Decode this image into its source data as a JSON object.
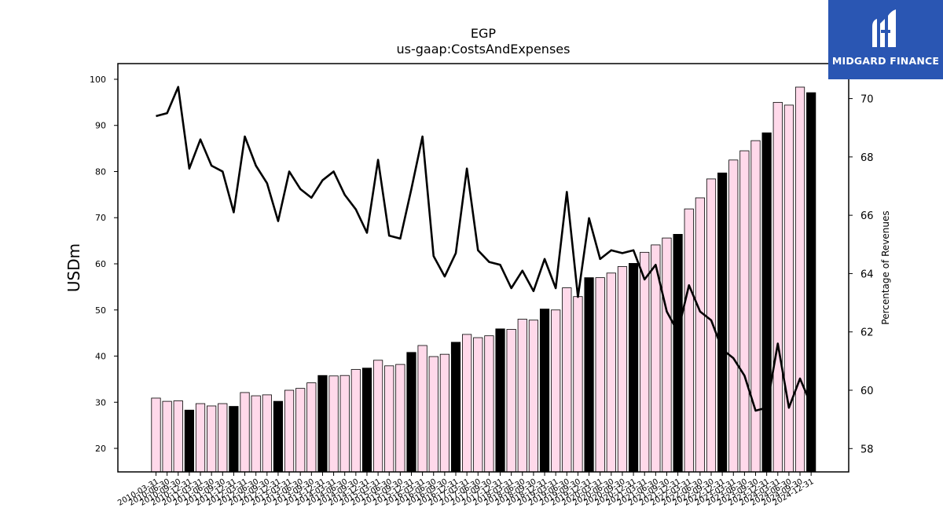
{
  "chart_data": {
    "type": "bar",
    "title": "EGP",
    "subtitle": "us-gaap:CostsAndExpenses",
    "ylabel": "USDm",
    "ylabel_right": "Percentage of Revenues",
    "ylim": [
      14.9,
      103.4
    ],
    "ylim_right": [
      57.2,
      71.2
    ],
    "yticks": [
      20,
      30,
      40,
      50,
      60,
      70,
      80,
      90,
      100
    ],
    "yticks_right": [
      58,
      60,
      62,
      64,
      66,
      68,
      70
    ],
    "categories": [
      "2010-03-31",
      "2010-06-30",
      "2010-09-30",
      "2010-12-31",
      "2011-03-31",
      "2011-06-30",
      "2011-09-30",
      "2011-12-31",
      "2012-03-31",
      "2012-06-30",
      "2012-09-30",
      "2012-12-31",
      "2013-03-31",
      "2013-06-30",
      "2013-09-30",
      "2013-12-31",
      "2014-03-31",
      "2014-06-30",
      "2014-09-30",
      "2014-12-31",
      "2015-03-31",
      "2015-06-30",
      "2015-09-30",
      "2015-12-31",
      "2016-03-31",
      "2016-06-30",
      "2016-09-30",
      "2016-12-31",
      "2017-03-31",
      "2017-06-30",
      "2017-09-30",
      "2017-12-31",
      "2018-03-31",
      "2018-06-30",
      "2018-09-30",
      "2018-12-31",
      "2019-03-31",
      "2019-06-30",
      "2019-09-30",
      "2019-12-31",
      "2020-03-31",
      "2020-06-30",
      "2020-09-30",
      "2020-12-31",
      "2021-03-31",
      "2021-06-30",
      "2021-09-30",
      "2021-12-31",
      "2022-03-31",
      "2022-06-30",
      "2022-09-30",
      "2022-12-31",
      "2023-03-31",
      "2023-06-30",
      "2023-09-30",
      "2023-12-31",
      "2024-03-31",
      "2024-06-30",
      "2024-09-30",
      "2024-12-31"
    ],
    "series": [
      {
        "type": "bar",
        "values": [
          30.9,
          30.2,
          30.3,
          28.3,
          29.7,
          29.2,
          29.7,
          29.1,
          32.1,
          31.4,
          31.6,
          30.2,
          32.6,
          33.0,
          34.2,
          35.8,
          35.7,
          35.8,
          37.1,
          37.4,
          39.1,
          37.9,
          38.2,
          40.8,
          42.3,
          39.9,
          40.4,
          43.0,
          44.7,
          44.0,
          44.4,
          45.9,
          45.8,
          48.0,
          47.8,
          50.2,
          50.0,
          54.8,
          52.9,
          57.0,
          57.0,
          58.0,
          59.4,
          60.1,
          62.5,
          64.1,
          65.6,
          66.4,
          71.9,
          74.3,
          78.4,
          79.7,
          82.5,
          84.5,
          86.7,
          88.4,
          95.0,
          94.4,
          98.3,
          97.1
        ],
        "colors": {
          "regular": "#ffd9ea",
          "year_end": "#000000",
          "edge": "#000000"
        }
      },
      {
        "type": "line",
        "axis": "right",
        "color": "#000000",
        "values": [
          69.4,
          69.5,
          70.4,
          67.6,
          68.6,
          67.7,
          67.5,
          66.1,
          68.7,
          67.7,
          67.1,
          65.8,
          67.5,
          66.9,
          66.6,
          67.2,
          67.5,
          66.7,
          66.2,
          65.4,
          67.9,
          65.3,
          65.2,
          66.9,
          68.7,
          64.6,
          63.9,
          64.7,
          67.6,
          64.8,
          64.4,
          64.3,
          63.5,
          64.1,
          63.4,
          64.5,
          63.5,
          66.8,
          63.2,
          65.9,
          64.5,
          64.8,
          64.7,
          64.8,
          63.8,
          64.3,
          62.7,
          62.0,
          63.6,
          62.7,
          62.4,
          61.4,
          61.1,
          60.5,
          59.3,
          59.4,
          61.6,
          59.4,
          60.4,
          59.5
        ]
      }
    ],
    "grid": false,
    "legend": "none"
  },
  "logo": {
    "text": "MIDGARD FINANCE",
    "background": "#2a56b3"
  }
}
